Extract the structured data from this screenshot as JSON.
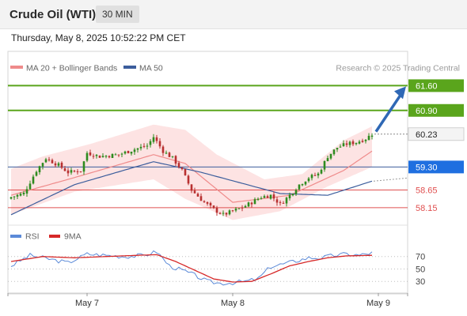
{
  "header": {
    "title": "Crude Oil (WTI)",
    "timeframe": "30 MIN",
    "timestamp": "Thursday, May 8, 2025 10:52:22 PM CET"
  },
  "legend": {
    "ma20": "MA 20 + Bollinger Bands",
    "ma50": "MA 50",
    "credit": "Research © 2025 Trading Central",
    "rsi": "RSI",
    "rsi_ma": "9MA"
  },
  "colors": {
    "accent_green": "#5aa51c",
    "accent_blue": "#1f6fe0",
    "support_red": "#e05050",
    "arrow": "#2f68b5",
    "candle_up": "#2e8b1f",
    "candle_down": "#b83030",
    "band_fill": "#fde3e3",
    "ma20": "#ef8b8b",
    "ma50": "#3b5d9c",
    "rsi_line": "#5b8ad8",
    "rsi_ma_line": "#d62828"
  },
  "chart_data": [
    {
      "type": "candlestick",
      "title": "Crude Oil (WTI)",
      "timeframe": "30 MIN",
      "x_tick_labels": [
        "May 7",
        "May 8",
        "May 9"
      ],
      "ylim": [
        57.7,
        61.9
      ],
      "levels": [
        {
          "value": 61.6,
          "label": "61.60",
          "kind": "resistance"
        },
        {
          "value": 60.9,
          "label": "60.90",
          "kind": "resistance"
        },
        {
          "value": 60.23,
          "label": "60.23",
          "kind": "last"
        },
        {
          "value": 59.3,
          "label": "59.30",
          "kind": "pivot"
        },
        {
          "value": 58.65,
          "label": "58.65",
          "kind": "support"
        },
        {
          "value": 58.15,
          "label": "58.15",
          "kind": "support"
        }
      ],
      "price_anchors": [
        [
          0,
          58.45
        ],
        [
          4,
          58.55
        ],
        [
          8,
          59.2
        ],
        [
          11,
          59.55
        ],
        [
          15,
          59.35
        ],
        [
          18,
          59.15
        ],
        [
          22,
          59.2
        ],
        [
          24,
          59.7
        ],
        [
          28,
          59.6
        ],
        [
          34,
          59.65
        ],
        [
          39,
          59.8
        ],
        [
          43,
          59.9
        ],
        [
          45,
          60.15
        ],
        [
          48,
          59.75
        ],
        [
          51,
          59.55
        ],
        [
          54,
          59.2
        ],
        [
          57,
          58.65
        ],
        [
          61,
          58.3
        ],
        [
          64,
          58.1
        ],
        [
          67,
          57.95
        ],
        [
          70,
          58.05
        ],
        [
          73,
          58.15
        ],
        [
          76,
          58.3
        ],
        [
          79,
          58.45
        ],
        [
          82,
          58.5
        ],
        [
          85,
          58.25
        ],
        [
          88,
          58.5
        ],
        [
          91,
          58.8
        ],
        [
          94,
          59.0
        ],
        [
          97,
          59.1
        ],
        [
          100,
          59.6
        ],
        [
          103,
          59.85
        ],
        [
          106,
          59.95
        ],
        [
          109,
          60.0
        ],
        [
          112,
          60.1
        ],
        [
          114,
          60.23
        ]
      ],
      "series": [
        {
          "name": "MA 20",
          "values": [
            [
              0,
              58.5
            ],
            [
              20,
              59.0
            ],
            [
              45,
              59.65
            ],
            [
              55,
              59.4
            ],
            [
              70,
              58.3
            ],
            [
              88,
              58.5
            ],
            [
              105,
              59.2
            ],
            [
              114,
              59.75
            ]
          ]
        },
        {
          "name": "MA 50",
          "values": [
            [
              0,
              57.95
            ],
            [
              20,
              58.8
            ],
            [
              45,
              59.45
            ],
            [
              60,
              59.15
            ],
            [
              85,
              58.55
            ],
            [
              100,
              58.5
            ],
            [
              114,
              58.9
            ]
          ]
        },
        {
          "name": "Bollinger upper",
          "values": [
            [
              0,
              59.25
            ],
            [
              10,
              59.6
            ],
            [
              25,
              59.95
            ],
            [
              45,
              60.5
            ],
            [
              55,
              60.35
            ],
            [
              65,
              59.65
            ],
            [
              80,
              58.95
            ],
            [
              92,
              59.1
            ],
            [
              105,
              60.05
            ],
            [
              114,
              60.45
            ]
          ]
        },
        {
          "name": "Bollinger lower",
          "values": [
            [
              0,
              57.95
            ],
            [
              20,
              58.6
            ],
            [
              45,
              58.95
            ],
            [
              55,
              58.4
            ],
            [
              70,
              57.8
            ],
            [
              85,
              58.05
            ],
            [
              100,
              58.75
            ],
            [
              114,
              59.3
            ]
          ]
        }
      ]
    },
    {
      "type": "line",
      "title": "RSI",
      "y_tick_labels": [
        "70",
        "50",
        "30"
      ],
      "ylim": [
        15,
        90
      ],
      "series": [
        {
          "name": "RSI",
          "values": [
            [
              0,
              55
            ],
            [
              6,
              72
            ],
            [
              12,
              66
            ],
            [
              18,
              60
            ],
            [
              24,
              74
            ],
            [
              30,
              72
            ],
            [
              36,
              70
            ],
            [
              42,
              72
            ],
            [
              46,
              78
            ],
            [
              50,
              55
            ],
            [
              54,
              48
            ],
            [
              58,
              40
            ],
            [
              62,
              30
            ],
            [
              66,
              27
            ],
            [
              70,
              28
            ],
            [
              74,
              30
            ],
            [
              78,
              34
            ],
            [
              82,
              54
            ],
            [
              86,
              58
            ],
            [
              90,
              63
            ],
            [
              94,
              68
            ],
            [
              98,
              68
            ],
            [
              102,
              72
            ],
            [
              106,
              74
            ],
            [
              110,
              72
            ],
            [
              114,
              76
            ]
          ]
        },
        {
          "name": "9MA",
          "values": [
            [
              0,
              62
            ],
            [
              10,
              70
            ],
            [
              20,
              68
            ],
            [
              30,
              70
            ],
            [
              40,
              72
            ],
            [
              46,
              73
            ],
            [
              52,
              62
            ],
            [
              58,
              48
            ],
            [
              64,
              34
            ],
            [
              70,
              29
            ],
            [
              76,
              30
            ],
            [
              82,
              42
            ],
            [
              88,
              55
            ],
            [
              94,
              62
            ],
            [
              100,
              68
            ],
            [
              106,
              71
            ],
            [
              114,
              72
            ]
          ]
        }
      ]
    }
  ]
}
